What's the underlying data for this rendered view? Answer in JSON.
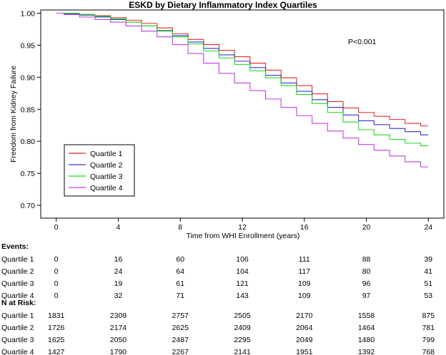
{
  "chart_data": {
    "type": "line",
    "title": "ESKD by Dietary Inflammatory Index Quartiles",
    "xlabel": "Time from WHI Enrollment (years)",
    "ylabel": "Freedom from Kidney Failure",
    "xlim": [
      -1,
      25
    ],
    "ylim": [
      0.68,
      1.005
    ],
    "xticks": [
      "0",
      "4",
      "8",
      "12",
      "16",
      "20",
      "24"
    ],
    "yticks": [
      "1.00",
      "0.95",
      "0.90",
      "0.85",
      "0.80",
      "0.75",
      "0.70"
    ],
    "annotation": "P<0.001",
    "legend_position": "bottom-left",
    "series": [
      {
        "name": "Quartile 1",
        "color": "#e8292b",
        "x": [
          0,
          1,
          2,
          3,
          4,
          5,
          6,
          7,
          8,
          9,
          10,
          11,
          12,
          13,
          14,
          15,
          16,
          17,
          18,
          19,
          20,
          21,
          22,
          23,
          24
        ],
        "y": [
          1.0,
          1.0,
          0.998,
          0.996,
          0.993,
          0.989,
          0.984,
          0.977,
          0.968,
          0.959,
          0.951,
          0.942,
          0.932,
          0.922,
          0.911,
          0.899,
          0.887,
          0.874,
          0.862,
          0.852,
          0.845,
          0.839,
          0.834,
          0.828,
          0.824
        ]
      },
      {
        "name": "Quartile 2",
        "color": "#2f36c8",
        "x": [
          0,
          1,
          2,
          3,
          4,
          5,
          6,
          7,
          8,
          9,
          10,
          11,
          12,
          13,
          14,
          15,
          16,
          17,
          18,
          19,
          20,
          21,
          22,
          23,
          24
        ],
        "y": [
          1.0,
          0.999,
          0.997,
          0.994,
          0.99,
          0.986,
          0.98,
          0.973,
          0.965,
          0.955,
          0.945,
          0.935,
          0.925,
          0.915,
          0.903,
          0.891,
          0.878,
          0.865,
          0.853,
          0.841,
          0.832,
          0.826,
          0.82,
          0.815,
          0.81
        ]
      },
      {
        "name": "Quartile 3",
        "color": "#1fd81f",
        "x": [
          0,
          1,
          2,
          3,
          4,
          5,
          6,
          7,
          8,
          9,
          10,
          11,
          12,
          13,
          14,
          15,
          16,
          17,
          18,
          19,
          20,
          21,
          22,
          23,
          24
        ],
        "y": [
          1.0,
          1.0,
          0.998,
          0.995,
          0.991,
          0.986,
          0.98,
          0.972,
          0.963,
          0.952,
          0.941,
          0.93,
          0.92,
          0.91,
          0.899,
          0.887,
          0.873,
          0.859,
          0.845,
          0.83,
          0.818,
          0.81,
          0.803,
          0.797,
          0.793
        ]
      },
      {
        "name": "Quartile 4",
        "color": "#c13ee0",
        "x": [
          0,
          1,
          2,
          3,
          4,
          5,
          6,
          7,
          8,
          9,
          10,
          11,
          12,
          13,
          14,
          15,
          16,
          17,
          18,
          19,
          20,
          21,
          22,
          23,
          24
        ],
        "y": [
          1.0,
          0.998,
          0.994,
          0.99,
          0.986,
          0.98,
          0.972,
          0.963,
          0.951,
          0.937,
          0.922,
          0.906,
          0.891,
          0.879,
          0.866,
          0.853,
          0.84,
          0.828,
          0.816,
          0.805,
          0.795,
          0.786,
          0.777,
          0.768,
          0.76
        ]
      }
    ],
    "table": {
      "columns": [
        "0",
        "4",
        "8",
        "12",
        "16",
        "20",
        "24"
      ],
      "events": {
        "label": "Events:",
        "rows": [
          {
            "name": "Quartile 1",
            "values": [
              "0",
              "16",
              "60",
              "106",
              "111",
              "88",
              "39"
            ]
          },
          {
            "name": "Quartile 2",
            "values": [
              "0",
              "24",
              "64",
              "104",
              "117",
              "80",
              "41"
            ]
          },
          {
            "name": "Quartile 3",
            "values": [
              "0",
              "19",
              "61",
              "121",
              "109",
              "96",
              "51"
            ]
          },
          {
            "name": "Quartile 4",
            "values": [
              "0",
              "32",
              "71",
              "143",
              "109",
              "97",
              "53"
            ]
          }
        ]
      },
      "at_risk": {
        "label": "N at Risk:",
        "rows": [
          {
            "name": "Quartile 1",
            "values": [
              "1831",
              "2309",
              "2757",
              "2505",
              "2170",
              "1558",
              "875"
            ]
          },
          {
            "name": "Quartile 2",
            "values": [
              "1726",
              "2174",
              "2625",
              "2409",
              "2064",
              "1464",
              "781"
            ]
          },
          {
            "name": "Quartile 3",
            "values": [
              "1625",
              "2050",
              "2487",
              "2295",
              "2049",
              "1480",
              "799"
            ]
          },
          {
            "name": "Quartile 4",
            "values": [
              "1427",
              "1790",
              "2267",
              "2141",
              "1951",
              "1392",
              "768"
            ]
          }
        ]
      }
    }
  }
}
